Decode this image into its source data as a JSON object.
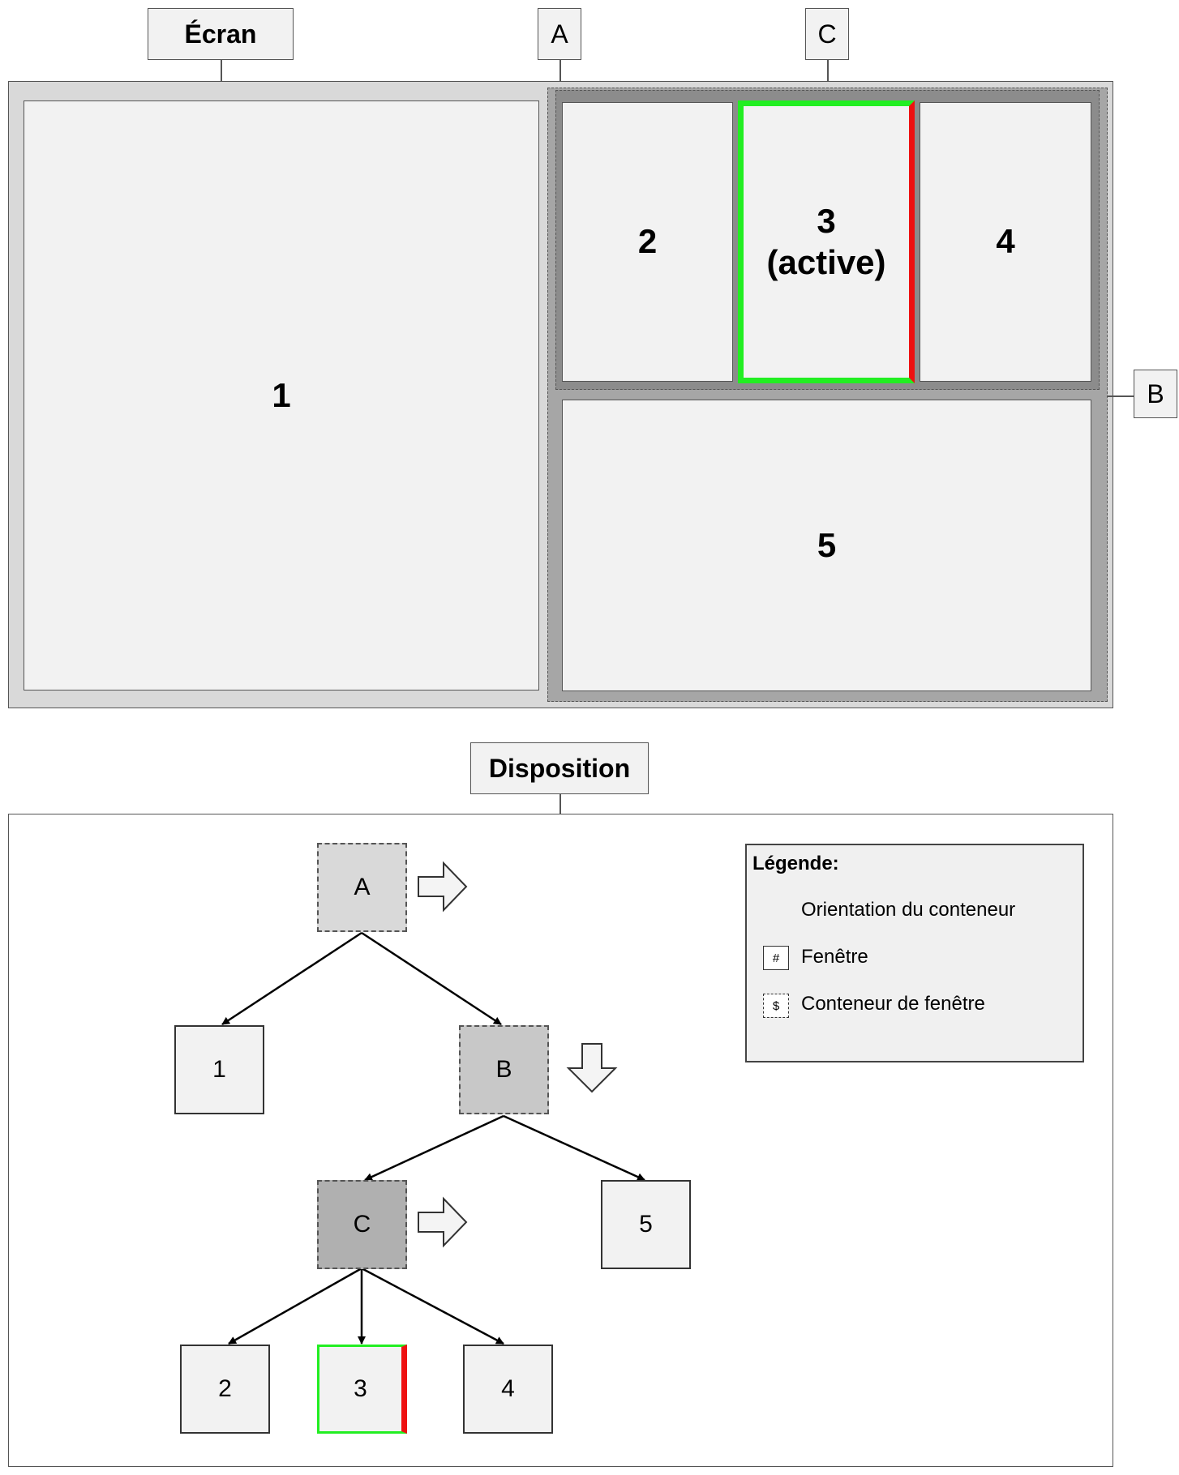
{
  "screen_section": {
    "label": "Écran",
    "container_a_tag": "A",
    "container_b_tag": "B",
    "container_c_tag": "C",
    "windows": {
      "w1": "1",
      "w2": "2",
      "w3_line1": "3",
      "w3_line2": "(active)",
      "w4": "4",
      "w5": "5"
    }
  },
  "layout_section": {
    "label": "Disposition",
    "nodes": {
      "a": "A",
      "b": "B",
      "c": "C",
      "n1": "1",
      "n2": "2",
      "n3": "3",
      "n4": "4",
      "n5": "5"
    },
    "orientations": {
      "a": "right",
      "b": "down",
      "c": "right"
    }
  },
  "legend": {
    "title": "Légende:",
    "items": [
      {
        "icon": "arrow-right-icon",
        "label": "Orientation du conteneur"
      },
      {
        "icon": "window-box-icon",
        "symbol": "#",
        "label": "Fenêtre"
      },
      {
        "icon": "container-box-icon",
        "symbol": "$",
        "label": "Conteneur de fenêtre"
      }
    ]
  },
  "colors": {
    "active_border": "#22ee22",
    "split_indicator": "#ee1111",
    "container_a_fill": "#d9d9d9",
    "container_b_fill": "#c8c8c8",
    "container_c_fill": "#b0b0b0"
  }
}
